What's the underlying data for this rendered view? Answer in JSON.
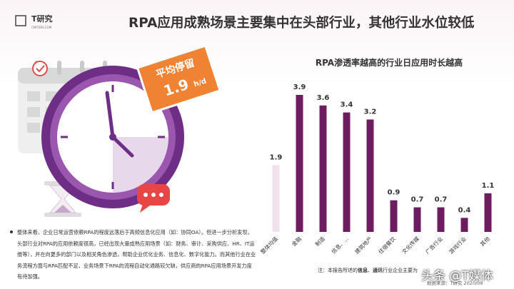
{
  "header": {
    "logo": "T研究",
    "logo_sub": "CMITEBS.COM",
    "title": "RPA应用成熟场景主要集中在头部行业，其他行业水位较低"
  },
  "badge": {
    "label": "平均停留",
    "value": "1.9",
    "unit": "h/d"
  },
  "note": "整体来看，企业日常运营依赖RPA的程度远落后于高频信息化应用（如：协同OA）。但进一步分析发现，头部行业对RPA的应用依赖度很高，已经出现大量成熟应用场景（如：财务、审计、采购供应、HR、IT运维等），并在向更多的部门以及相关角色渗透，帮助企业优化业务、信息化、数字化能力。而其他行业在业务流程方面与RPA匹配不足，业务场景下RPA的流程自动化通路较欠缺，供应商的RPA应用场景开发力度有待加强。",
  "chart_data": {
    "type": "bar",
    "title": "RPA渗透率越高的行业日应用时长越高",
    "categories": [
      "整体均值",
      "金融",
      "制造",
      "信息、...",
      "建筑地产",
      "住宿餐饮",
      "文化传媒",
      "广告行业",
      "游戏行业",
      "其他"
    ],
    "values": [
      1.9,
      3.9,
      3.6,
      3.4,
      3.2,
      0.9,
      0.7,
      0.7,
      0.4,
      1.1
    ],
    "colors": [
      "#f0e1ea",
      "#6d1d5f",
      "#6d1d5f",
      "#6d1d5f",
      "#6d1d5f",
      "#6d1d5f",
      "#6d1d5f",
      "#6d1d5f",
      "#6d1d5f",
      "#6d1d5f"
    ]
  },
  "footnote": {
    "pre": "注：本报告所述的",
    "bold1": "信息",
    "sep": "、",
    "bold2": "通讯",
    "post": "行业企业主要为"
  },
  "source": "数据来源：T研究 2020/08",
  "watermark": "头条 @T媒体"
}
